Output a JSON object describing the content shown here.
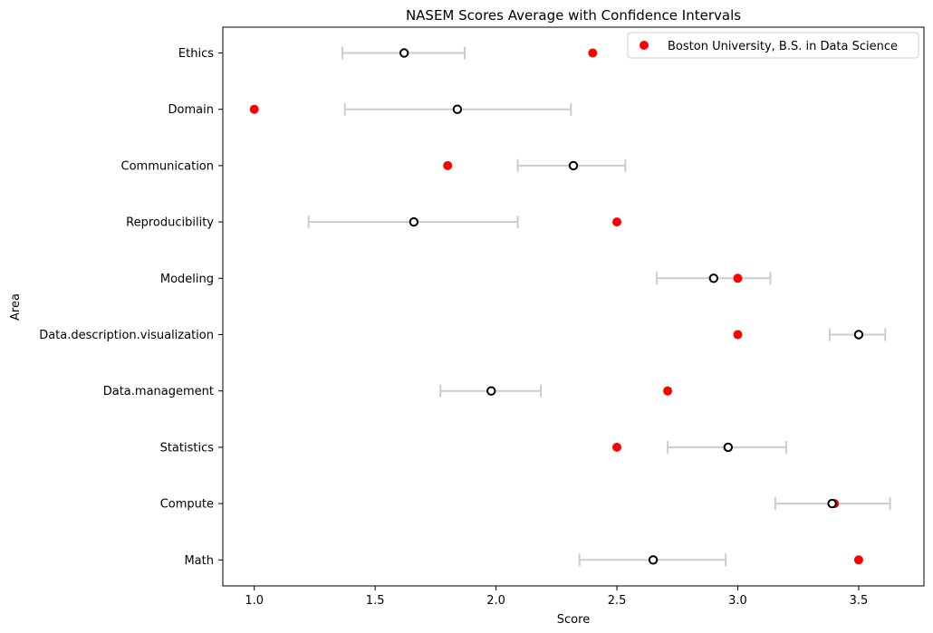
{
  "chart_data": {
    "type": "scatter",
    "title": "NASEM Scores Average with Confidence Intervals",
    "xlabel": "Score",
    "ylabel": "Area",
    "xlim": [
      0.87,
      3.77
    ],
    "x_ticks": [
      1.0,
      1.5,
      2.0,
      2.5,
      3.0,
      3.5
    ],
    "x_tick_labels": [
      "1.0",
      "1.5",
      "2.0",
      "2.5",
      "3.0",
      "3.5"
    ],
    "categories": [
      "Ethics",
      "Domain",
      "Communication",
      "Reproducibility",
      "Modeling",
      "Data.description.visualization",
      "Data.management",
      "Statistics",
      "Compute",
      "Math"
    ],
    "grid": false,
    "legend_position": "top-right",
    "series": [
      {
        "name": "Boston University, B.S. in Data Science",
        "marker": "filled-circle",
        "color": "#ff0000",
        "values": [
          2.4,
          1.0,
          1.8,
          2.5,
          3.0,
          3.0,
          2.71,
          2.5,
          3.4,
          3.5
        ]
      },
      {
        "marker": "open-circle",
        "color": "#000000",
        "values": [
          1.62,
          1.84,
          2.32,
          1.66,
          2.9,
          3.5,
          1.98,
          2.96,
          3.39,
          2.65
        ],
        "ci_low": [
          1.365,
          1.375,
          2.09,
          1.225,
          2.665,
          3.38,
          1.77,
          2.71,
          3.155,
          2.345
        ],
        "ci_high": [
          1.87,
          2.31,
          2.535,
          2.09,
          3.135,
          3.61,
          2.185,
          3.2,
          3.63,
          2.95
        ],
        "ci_color": "#cccccc"
      }
    ]
  }
}
